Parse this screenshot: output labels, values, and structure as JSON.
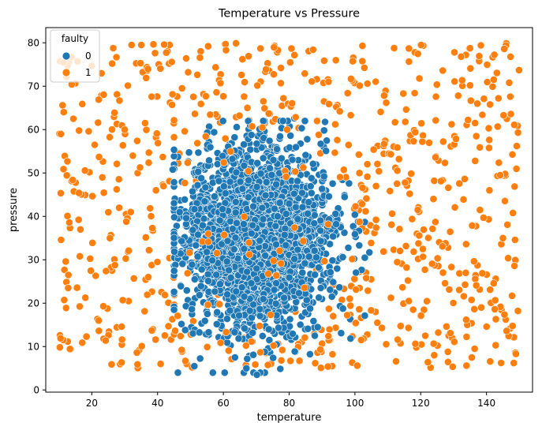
{
  "chart_data": {
    "type": "scatter",
    "title": "Temperature vs Pressure",
    "xlabel": "temperature",
    "ylabel": "pressure",
    "xlim": [
      6,
      154
    ],
    "ylim": [
      -0.5,
      83.5
    ],
    "xticks": [
      20,
      40,
      60,
      80,
      100,
      120,
      140
    ],
    "yticks": [
      0,
      10,
      20,
      30,
      40,
      50,
      60,
      70,
      80
    ],
    "grid": false,
    "legend": {
      "title": "faulty",
      "placement": "top-left"
    },
    "series": [
      {
        "name": "0",
        "color": "#1f77b4",
        "distribution": {
          "temperature_mean": 70,
          "temperature_sd": 11,
          "pressure_mean": 35,
          "pressure_sd": 10
        },
        "points": [
          [
            69.1,
            42.3
          ],
          [
            63.4,
            58.2
          ],
          [
            66.3,
            51.7
          ],
          [
            75.2,
            53.0
          ],
          [
            71.0,
            60.1
          ],
          [
            68.2,
            55.4
          ],
          [
            81.6,
            62.6
          ],
          [
            67.0,
            5.0
          ],
          [
            69.1,
            8.1
          ],
          [
            70.2,
            3.5
          ],
          [
            72.6,
            8.8
          ],
          [
            76.2,
            10.5
          ],
          [
            73.8,
            14.0
          ],
          [
            61.3,
            12.4
          ],
          [
            50.4,
            18.6
          ],
          [
            48.7,
            39.6
          ],
          [
            46.7,
            41.0
          ],
          [
            47.3,
            34.3
          ],
          [
            90.6,
            49.2
          ],
          [
            92.1,
            44.6
          ],
          [
            94.3,
            38.2
          ],
          [
            96.3,
            30.6
          ],
          [
            101.0,
            38.8
          ],
          [
            103.0,
            38.7
          ],
          [
            100.0,
            35.9
          ],
          [
            104.4,
            31.7
          ],
          [
            98.2,
            47.6
          ],
          [
            95.8,
            13.1
          ],
          [
            87.8,
            12.5
          ],
          [
            85.7,
            14.1
          ],
          [
            59.0,
            24.4
          ],
          [
            61.1,
            29.6
          ],
          [
            62.0,
            18.3
          ],
          [
            58.1,
            17.9
          ],
          [
            57.2,
            59.4
          ],
          [
            76.3,
            55.5
          ],
          [
            80.4,
            58.6
          ],
          [
            85.5,
            57.8
          ],
          [
            91.2,
            55.1
          ],
          [
            44.6,
            50.8
          ],
          [
            52.4,
            54.7
          ]
        ]
      },
      {
        "name": "1",
        "color": "#ff7f0e",
        "distribution": {
          "temperature_range": [
            10,
            150
          ],
          "pressure_range": [
            5,
            80
          ],
          "excludes_core": true
        },
        "points": [
          [
            32.1,
            79.5
          ],
          [
            55.4,
            79.2
          ],
          [
            60.8,
            78.3
          ],
          [
            71.3,
            78.7
          ],
          [
            80.7,
            78.7
          ],
          [
            111.9,
            78.8
          ],
          [
            120.1,
            79.5
          ],
          [
            138.3,
            79.4
          ],
          [
            145.4,
            78.6
          ],
          [
            147.3,
            76.8
          ],
          [
            48.7,
            76.4
          ],
          [
            42.0,
            79.6
          ],
          [
            44.3,
            75.6
          ],
          [
            26.2,
            75.2
          ],
          [
            11.4,
            75.5
          ],
          [
            13.9,
            70.4
          ],
          [
            17.1,
            65.9
          ],
          [
            11.1,
            65.6
          ],
          [
            10.6,
            59.0
          ],
          [
            14.4,
            62.5
          ],
          [
            21.9,
            61.6
          ],
          [
            22.1,
            66.9
          ],
          [
            26.9,
            63.9
          ],
          [
            28.4,
            66.7
          ],
          [
            30.0,
            60.0
          ],
          [
            36.2,
            61.5
          ],
          [
            40.1,
            56.9
          ],
          [
            41.6,
            53.7
          ],
          [
            33.8,
            57.4
          ],
          [
            20.9,
            56.5
          ],
          [
            22.2,
            53.7
          ],
          [
            23.2,
            49.0
          ],
          [
            14.2,
            48.4
          ],
          [
            11.4,
            50.9
          ],
          [
            12.6,
            40.1
          ],
          [
            20.2,
            33.9
          ],
          [
            16.0,
            39.2
          ],
          [
            25.5,
            35.0
          ],
          [
            30.5,
            38.8
          ],
          [
            31.2,
            32.1
          ],
          [
            32.8,
            25.7
          ],
          [
            29.4,
            20.7
          ],
          [
            22.1,
            16.0
          ],
          [
            12.2,
            18.9
          ],
          [
            10.5,
            11.9
          ],
          [
            17.1,
            10.9
          ],
          [
            24.2,
            11.4
          ],
          [
            26.0,
            5.9
          ],
          [
            29.2,
            11.6
          ],
          [
            33.7,
            8.6
          ],
          [
            39.4,
            11.6
          ],
          [
            43.3,
            14.7
          ],
          [
            50.5,
            5.2
          ],
          [
            55.1,
            9.9
          ],
          [
            66.3,
            12.0
          ],
          [
            80.4,
            6.7
          ],
          [
            82.7,
            9.9
          ],
          [
            99.2,
            6.3
          ],
          [
            100.7,
            5.6
          ],
          [
            108.2,
            14.3
          ],
          [
            112.5,
            6.6
          ],
          [
            113.0,
            11.6
          ],
          [
            116.3,
            14.3
          ],
          [
            117.7,
            18.5
          ],
          [
            122.2,
            6.4
          ],
          [
            129.0,
            13.1
          ],
          [
            130.2,
            11.1
          ],
          [
            136.4,
            9.5
          ],
          [
            142.8,
            10.3
          ],
          [
            146.1,
            13.6
          ],
          [
            148.3,
            6.2
          ],
          [
            142.5,
            18.6
          ],
          [
            136.9,
            24.1
          ],
          [
            133.7,
            27.0
          ],
          [
            126.6,
            33.1
          ],
          [
            120.7,
            30.7
          ],
          [
            119.1,
            41.5
          ],
          [
            111.1,
            38.1
          ],
          [
            106.4,
            47.0
          ],
          [
            105.7,
            55.4
          ],
          [
            108.9,
            56.7
          ],
          [
            112.2,
            61.7
          ],
          [
            114.7,
            68.3
          ],
          [
            119.6,
            71.8
          ],
          [
            126.7,
            73.6
          ],
          [
            130.3,
            71.1
          ],
          [
            137.2,
            66.0
          ],
          [
            145.2,
            63.3
          ],
          [
            149.2,
            56.2
          ],
          [
            144.2,
            49.5
          ],
          [
            140.9,
            46.0
          ],
          [
            133.0,
            43.9
          ],
          [
            128.4,
            46.6
          ],
          [
            124.5,
            53.6
          ],
          [
            120.5,
            57.2
          ],
          [
            113.4,
            53.2
          ],
          [
            107.3,
            50.4
          ],
          [
            102.3,
            46.6
          ],
          [
            108.7,
            31.9
          ],
          [
            115.7,
            28.2
          ],
          [
            116.4,
            20.5
          ],
          [
            127.4,
            24.6
          ],
          [
            133.8,
            33.6
          ],
          [
            139.1,
            39.7
          ],
          [
            145.0,
            35.0
          ],
          [
            148.5,
            28.6
          ],
          [
            141.1,
            23.1
          ],
          [
            103.8,
            70.6
          ],
          [
            94.2,
            76.0
          ],
          [
            98.8,
            71.7
          ],
          [
            90.6,
            66.5
          ],
          [
            86.9,
            71.1
          ],
          [
            87.3,
            78.4
          ],
          [
            77.5,
            74.2
          ],
          [
            65.8,
            76.2
          ],
          [
            59.1,
            70.7
          ],
          [
            54.7,
            67.7
          ],
          [
            49.3,
            73.2
          ],
          [
            38.2,
            67.6
          ],
          [
            36.5,
            71.9
          ],
          [
            34.8,
            75.3
          ],
          [
            96.7,
            23.3
          ],
          [
            101.3,
            27.2
          ],
          [
            98.6,
            17.3
          ],
          [
            92.1,
            18.7
          ],
          [
            91.8,
            5.4
          ],
          [
            89.5,
            9.3
          ],
          [
            50.1,
            12.8
          ],
          [
            45.1,
            21.9
          ],
          [
            44.9,
            25.9
          ],
          [
            43.6,
            30.4
          ],
          [
            38.4,
            37.3
          ],
          [
            39.5,
            46.0
          ],
          [
            41.8,
            47.0
          ],
          [
            57.7,
            63.5
          ],
          [
            64.9,
            63.2
          ],
          [
            72.6,
            61.5
          ],
          [
            88.5,
            62.0
          ],
          [
            92.1,
            65.9
          ]
        ]
      }
    ]
  }
}
